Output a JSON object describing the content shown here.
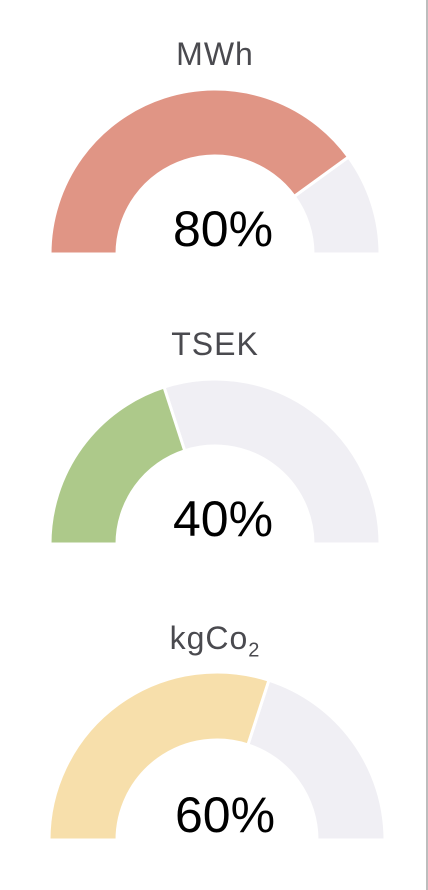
{
  "chart_data": [
    {
      "type": "gauge",
      "title": "MWh",
      "value": 80,
      "value_label": "80%",
      "range": [
        0,
        100
      ],
      "fill_color": "#e09585",
      "track_color": "#f0eff4"
    },
    {
      "type": "gauge",
      "title": "TSEK",
      "value": 40,
      "value_label": "40%",
      "range": [
        0,
        100
      ],
      "fill_color": "#adc98a",
      "track_color": "#f0eff4"
    },
    {
      "type": "gauge",
      "title": "kgCo",
      "title_subscript": "2",
      "value": 60,
      "value_label": "60%",
      "range": [
        0,
        100
      ],
      "fill_color": "#f7dfab",
      "track_color": "#f0eff4"
    }
  ]
}
